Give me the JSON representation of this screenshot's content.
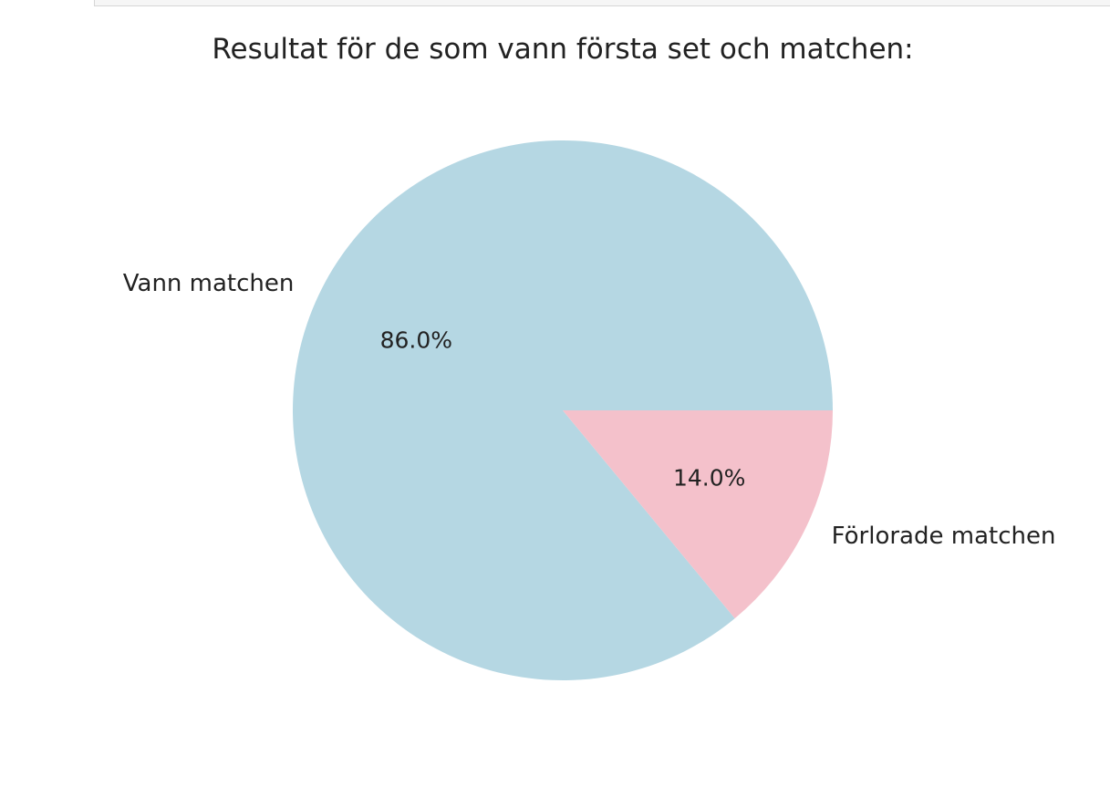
{
  "chart_data": {
    "type": "pie",
    "title": "Resultat för de som vann första set och matchen:",
    "slices": [
      {
        "label": "Vann matchen",
        "value": 86.0,
        "pct_label": "86.0%",
        "color": "#b5d7e3"
      },
      {
        "label": "Förlorade matchen",
        "value": 14.0,
        "pct_label": "14.0%",
        "color": "#f4c1cb"
      }
    ],
    "start_angle_deg": 0,
    "direction": "counterclockwise"
  }
}
